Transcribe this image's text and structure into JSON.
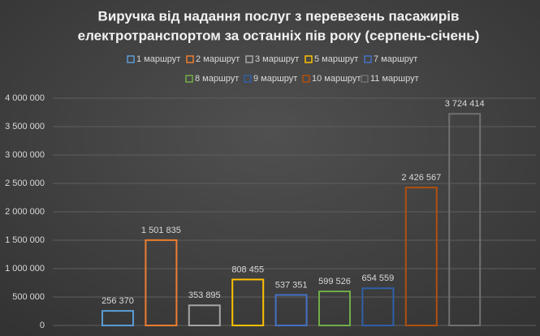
{
  "chart_data": {
    "type": "bar",
    "title": [
      "Виручка від надання послуг з перевезень пасажирів",
      "електротранспортом за останніх пів року (серпень-січень)"
    ],
    "series": [
      {
        "name": "1 маршрут",
        "color": "#5b9bd5",
        "values": [
          256370
        ],
        "value_labels": [
          "256 370"
        ]
      },
      {
        "name": "2 маршрут",
        "color": "#ed7d31",
        "values": [
          1501835
        ],
        "value_labels": [
          "1 501 835"
        ]
      },
      {
        "name": "3 маршрут",
        "color": "#a5a5a5",
        "values": [
          353895
        ],
        "value_labels": [
          "353 895"
        ]
      },
      {
        "name": "5 маршрут",
        "color": "#ffc000",
        "values": [
          808455
        ],
        "value_labels": [
          "808 455"
        ]
      },
      {
        "name": "7 маршрут",
        "color": "#4472c4",
        "values": [
          537351
        ],
        "value_labels": [
          "537 351"
        ]
      },
      {
        "name": "8 маршрут",
        "color": "#70ad47",
        "values": [
          599526
        ],
        "value_labels": [
          "599 526"
        ]
      },
      {
        "name": "9 маршрут",
        "color": "#2f5fa8",
        "values": [
          654559
        ],
        "value_labels": [
          "654 559"
        ]
      },
      {
        "name": "10 маршрут",
        "color": "#b0500f",
        "values": [
          2426567
        ],
        "value_labels": [
          "2 426 567"
        ]
      },
      {
        "name": "11 маршрут",
        "color": "#707070",
        "values": [
          3724414
        ],
        "value_labels": [
          "3 724 414"
        ]
      }
    ],
    "ylim": [
      0,
      4000000
    ],
    "yticks": [
      0,
      {
        "value": 500000,
        "label": "500 000"
      },
      {
        "value": 1000000,
        "label": "1 000 000"
      },
      {
        "value": 1500000,
        "label": "1 500 000"
      },
      {
        "value": 2000000,
        "label": "2 000 000"
      },
      {
        "value": 2500000,
        "label": "2 500 000"
      },
      {
        "value": 3000000,
        "label": "3 000 000"
      },
      {
        "value": 3500000,
        "label": "3 500 000"
      },
      {
        "value": 4000000,
        "label": "4 000 000"
      }
    ],
    "grid": true
  }
}
